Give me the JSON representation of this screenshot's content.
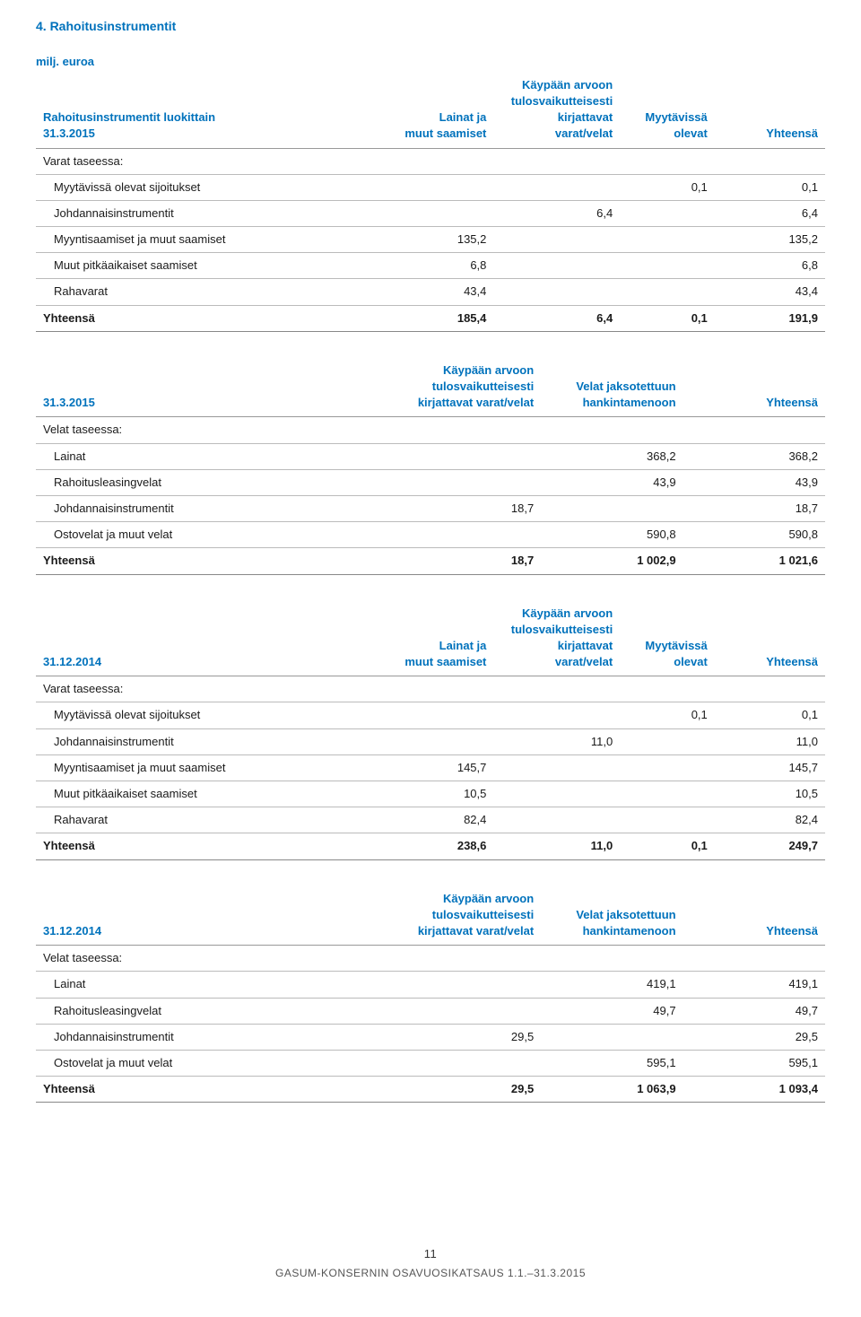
{
  "headings": {
    "section_title": "4. Rahoitusinstrumentit",
    "unit_label": "milj. euroa"
  },
  "labels": {
    "lainat_ja": "Lainat ja",
    "muut_saamiset": "muut saamiset",
    "kaypaan_arvoon": "Käypään arvoon",
    "tulosvaikutteisesti": "tulosvaikutteisesti",
    "kirjattavat": "kirjattavat varat/velat",
    "myytavissa": "Myytävissä",
    "olevat": "olevat",
    "yhteensa": "Yhteensä",
    "velat_jaksotettuun": "Velat jaksotettuun",
    "hankintamenoon": "hankintamenoon"
  },
  "table1": {
    "caption": "Rahoitusinstrumentit luokittain",
    "date": "31.3.2015",
    "section_label": "Varat taseessa:",
    "rows": [
      {
        "label": "Myytävissä olevat sijoitukset",
        "c1": "",
        "c2": "",
        "c3": "0,1",
        "c4": "0,1"
      },
      {
        "label": "Johdannaisinstrumentit",
        "c1": "",
        "c2": "6,4",
        "c3": "",
        "c4": "6,4"
      },
      {
        "label": "Myyntisaamiset ja muut saamiset",
        "c1": "135,2",
        "c2": "",
        "c3": "",
        "c4": "135,2"
      },
      {
        "label": "Muut pitkäaikaiset saamiset",
        "c1": "6,8",
        "c2": "",
        "c3": "",
        "c4": "6,8"
      },
      {
        "label": "Rahavarat",
        "c1": "43,4",
        "c2": "",
        "c3": "",
        "c4": "43,4"
      }
    ],
    "total": {
      "label": "Yhteensä",
      "c1": "185,4",
      "c2": "6,4",
      "c3": "0,1",
      "c4": "191,9"
    }
  },
  "table2": {
    "date": "31.3.2015",
    "section_label": "Velat taseessa:",
    "rows": [
      {
        "label": "Lainat",
        "c2": "",
        "c3": "368,2",
        "c4": "368,2"
      },
      {
        "label": "Rahoitusleasingvelat",
        "c2": "",
        "c3": "43,9",
        "c4": "43,9"
      },
      {
        "label": "Johdannaisinstrumentit",
        "c2": "18,7",
        "c3": "",
        "c4": "18,7"
      },
      {
        "label": "Ostovelat ja muut velat",
        "c2": "",
        "c3": "590,8",
        "c4": "590,8"
      }
    ],
    "total": {
      "label": "Yhteensä",
      "c2": "18,7",
      "c3": "1 002,9",
      "c4": "1 021,6"
    }
  },
  "table3": {
    "date": "31.12.2014",
    "section_label": "Varat taseessa:",
    "rows": [
      {
        "label": "Myytävissä olevat sijoitukset",
        "c1": "",
        "c2": "",
        "c3": "0,1",
        "c4": "0,1"
      },
      {
        "label": "Johdannaisinstrumentit",
        "c1": "",
        "c2": "11,0",
        "c3": "",
        "c4": "11,0"
      },
      {
        "label": "Myyntisaamiset ja muut saamiset",
        "c1": "145,7",
        "c2": "",
        "c3": "",
        "c4": "145,7"
      },
      {
        "label": "Muut pitkäaikaiset saamiset",
        "c1": "10,5",
        "c2": "",
        "c3": "",
        "c4": "10,5"
      },
      {
        "label": "Rahavarat",
        "c1": "82,4",
        "c2": "",
        "c3": "",
        "c4": "82,4"
      }
    ],
    "total": {
      "label": "Yhteensä",
      "c1": "238,6",
      "c2": "11,0",
      "c3": "0,1",
      "c4": "249,7"
    }
  },
  "table4": {
    "date": "31.12.2014",
    "section_label": "Velat taseessa:",
    "rows": [
      {
        "label": "Lainat",
        "c2": "",
        "c3": "419,1",
        "c4": "419,1"
      },
      {
        "label": "Rahoitusleasingvelat",
        "c2": "",
        "c3": "49,7",
        "c4": "49,7"
      },
      {
        "label": "Johdannaisinstrumentit",
        "c2": "29,5",
        "c3": "",
        "c4": "29,5"
      },
      {
        "label": "Ostovelat ja muut velat",
        "c2": "",
        "c3": "595,1",
        "c4": "595,1"
      }
    ],
    "total": {
      "label": "Yhteensä",
      "c2": "29,5",
      "c3": "1 063,9",
      "c4": "1 093,4"
    }
  },
  "footer": {
    "page": "11",
    "text": "GASUM-KONSERNIN OSAVUOSIKATSAUS 1.1.–31.3.2015"
  },
  "style": {
    "accent_color": "#0072bc",
    "col_widths_4": [
      "44%",
      "14%",
      "16%",
      "12%",
      "14%"
    ],
    "col_widths_3": [
      "44%",
      "20%",
      "18%",
      "18%"
    ]
  }
}
